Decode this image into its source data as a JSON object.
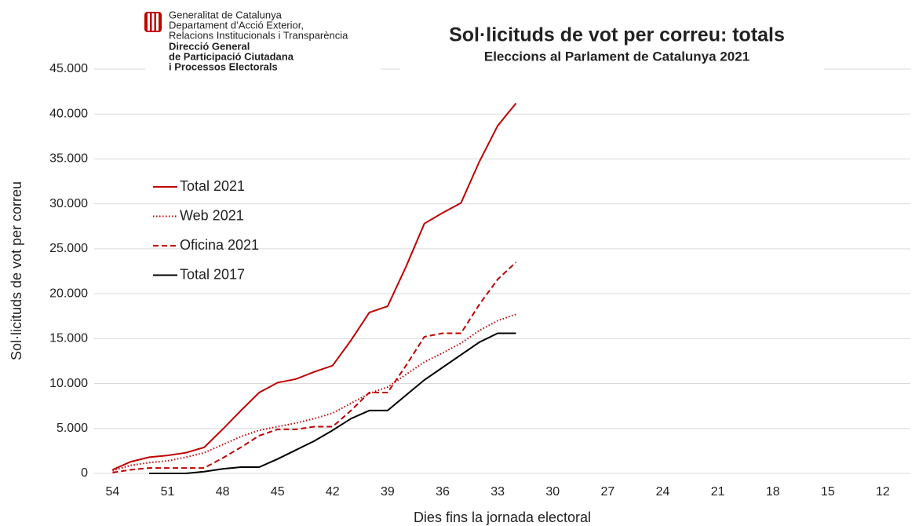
{
  "header": {
    "lines": [
      "Generalitat de Catalunya",
      "Departament d’Acció Exterior,",
      "Relacions Institucionals i Transparència"
    ],
    "bold_lines": [
      "Direcció General",
      "de Participació Ciutadana",
      "i Processos Electorals"
    ]
  },
  "chart_data": {
    "type": "line",
    "title": "Sol·licituds de vot per correu: totals",
    "subtitle": "Eleccions al Parlament de Catalunya 2021",
    "x_label": "Dies fins la jornada electoral",
    "y_label": "Sol·licituds de vot per correu",
    "x": [
      54,
      53,
      52,
      51,
      50,
      49,
      48,
      47,
      46,
      45,
      44,
      43,
      42,
      41,
      40,
      39,
      38,
      37,
      36,
      35,
      34,
      33,
      32
    ],
    "series": [
      {
        "name": "Total 2021",
        "color": "#c00000",
        "dash": "solid",
        "values": [
          400,
          1300,
          1800,
          2000,
          2300,
          2900,
          4900,
          7000,
          9000,
          10100,
          10500,
          11300,
          12000,
          14800,
          17900,
          18600,
          23000,
          27800,
          29000,
          30100,
          34700,
          38700,
          41200
        ]
      },
      {
        "name": "Web 2021",
        "color": "#c00000",
        "dash": "dotted",
        "values": [
          300,
          900,
          1200,
          1400,
          1800,
          2300,
          3200,
          4100,
          4800,
          5200,
          5600,
          6100,
          6700,
          7800,
          8900,
          9600,
          11000,
          12400,
          13400,
          14500,
          15900,
          17000,
          17700
        ]
      },
      {
        "name": "Oficina 2021",
        "color": "#c00000",
        "dash": "dashed",
        "values": [
          100,
          400,
          600,
          600,
          600,
          600,
          1700,
          2900,
          4200,
          4900,
          4900,
          5200,
          5200,
          7000,
          9000,
          9000,
          12000,
          15200,
          15600,
          15600,
          18800,
          21600,
          23500
        ]
      },
      {
        "name": "Total 2017",
        "color": "#000000",
        "dash": "solid",
        "values": [
          null,
          null,
          0,
          0,
          0,
          200,
          500,
          700,
          700,
          1600,
          2600,
          3600,
          4800,
          6100,
          7000,
          7000,
          8700,
          10400,
          11800,
          13200,
          14600,
          15600,
          15600
        ]
      }
    ],
    "xlim": [
      55,
      10.5
    ],
    "xticks": [
      54,
      51,
      48,
      45,
      42,
      39,
      36,
      33,
      30,
      27,
      24,
      21,
      18,
      15,
      12
    ],
    "ylim": [
      0,
      45000
    ],
    "yticks": [
      0,
      {
        "value": 5000,
        "label": "5.000"
      },
      {
        "value": 10000,
        "label": "10.000"
      },
      {
        "value": 15000,
        "label": "15.000"
      },
      {
        "value": 20000,
        "label": "20.000"
      },
      {
        "value": 25000,
        "label": "25.000"
      },
      {
        "value": 30000,
        "label": "30.000"
      },
      {
        "value": 35000,
        "label": "35.000"
      },
      {
        "value": 40000,
        "label": "40.000"
      },
      {
        "value": 45000,
        "label": "45.000"
      }
    ],
    "grid": true
  }
}
